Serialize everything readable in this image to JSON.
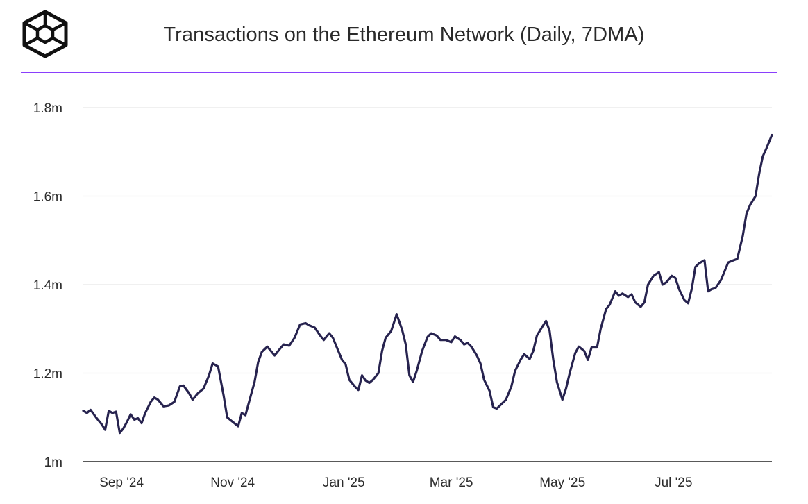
{
  "header": {
    "title": "Transactions on the Ethereum Network (Daily, 7DMA)",
    "logo_icon": "cube-logo-icon"
  },
  "colors": {
    "line": "#27234f",
    "accent_rule": "#8a3ffc",
    "grid": "#e6e6e6",
    "axis": "#222222"
  },
  "chart_data": {
    "type": "line",
    "title": "Transactions on the Ethereum Network (Daily, 7DMA)",
    "xlabel": "",
    "ylabel": "",
    "ylim": [
      1000000,
      1800000
    ],
    "y_ticks": [
      1000000,
      1200000,
      1400000,
      1600000,
      1800000
    ],
    "y_tick_labels": [
      "1m",
      "1.2m",
      "1.4m",
      "1.6m",
      "1.8m"
    ],
    "x_ticks": [
      "2024-09-01",
      "2024-11-01",
      "2025-01-01",
      "2025-03-01",
      "2025-05-01",
      "2025-07-01"
    ],
    "x_tick_labels": [
      "Sep '24",
      "Nov '24",
      "Jan '25",
      "Mar '25",
      "May '25",
      "Jul '25"
    ],
    "grid": true,
    "series": [
      {
        "points": [
          [
            "2024-08-11",
            1115000
          ],
          [
            "2024-08-13",
            1110000
          ],
          [
            "2024-08-15",
            1117000
          ],
          [
            "2024-08-18",
            1100000
          ],
          [
            "2024-08-21",
            1085000
          ],
          [
            "2024-08-23",
            1072000
          ],
          [
            "2024-08-25",
            1115000
          ],
          [
            "2024-08-27",
            1110000
          ],
          [
            "2024-08-29",
            1113000
          ],
          [
            "2024-08-31",
            1065000
          ],
          [
            "2024-09-02",
            1075000
          ],
          [
            "2024-09-04",
            1090000
          ],
          [
            "2024-09-06",
            1107000
          ],
          [
            "2024-09-08",
            1095000
          ],
          [
            "2024-09-10",
            1098000
          ],
          [
            "2024-09-12",
            1087000
          ],
          [
            "2024-09-14",
            1110000
          ],
          [
            "2024-09-17",
            1135000
          ],
          [
            "2024-09-19",
            1145000
          ],
          [
            "2024-09-21",
            1140000
          ],
          [
            "2024-09-24",
            1125000
          ],
          [
            "2024-09-27",
            1127000
          ],
          [
            "2024-09-30",
            1135000
          ],
          [
            "2024-10-03",
            1170000
          ],
          [
            "2024-10-05",
            1172000
          ],
          [
            "2024-10-08",
            1155000
          ],
          [
            "2024-10-10",
            1140000
          ],
          [
            "2024-10-13",
            1155000
          ],
          [
            "2024-10-16",
            1165000
          ],
          [
            "2024-10-19",
            1195000
          ],
          [
            "2024-10-21",
            1222000
          ],
          [
            "2024-10-24",
            1215000
          ],
          [
            "2024-10-27",
            1150000
          ],
          [
            "2024-10-29",
            1100000
          ],
          [
            "2024-11-01",
            1090000
          ],
          [
            "2024-11-04",
            1080000
          ],
          [
            "2024-11-06",
            1110000
          ],
          [
            "2024-11-08",
            1105000
          ],
          [
            "2024-11-11",
            1150000
          ],
          [
            "2024-11-13",
            1180000
          ],
          [
            "2024-11-15",
            1225000
          ],
          [
            "2024-11-17",
            1248000
          ],
          [
            "2024-11-20",
            1260000
          ],
          [
            "2024-11-22",
            1250000
          ],
          [
            "2024-11-24",
            1240000
          ],
          [
            "2024-11-27",
            1255000
          ],
          [
            "2024-11-29",
            1265000
          ],
          [
            "2024-12-02",
            1262000
          ],
          [
            "2024-12-05",
            1280000
          ],
          [
            "2024-12-08",
            1310000
          ],
          [
            "2024-12-11",
            1313000
          ],
          [
            "2024-12-13",
            1308000
          ],
          [
            "2024-12-16",
            1303000
          ],
          [
            "2024-12-19",
            1285000
          ],
          [
            "2024-12-21",
            1275000
          ],
          [
            "2024-12-24",
            1290000
          ],
          [
            "2024-12-26",
            1280000
          ],
          [
            "2024-12-29",
            1250000
          ],
          [
            "2024-12-31",
            1230000
          ],
          [
            "2025-01-02",
            1220000
          ],
          [
            "2025-01-04",
            1185000
          ],
          [
            "2025-01-07",
            1170000
          ],
          [
            "2025-01-09",
            1162000
          ],
          [
            "2025-01-11",
            1195000
          ],
          [
            "2025-01-13",
            1183000
          ],
          [
            "2025-01-15",
            1178000
          ],
          [
            "2025-01-17",
            1185000
          ],
          [
            "2025-01-20",
            1200000
          ],
          [
            "2025-01-22",
            1250000
          ],
          [
            "2025-01-24",
            1280000
          ],
          [
            "2025-01-27",
            1295000
          ],
          [
            "2025-01-30",
            1333000
          ],
          [
            "2025-02-02",
            1298000
          ],
          [
            "2025-02-04",
            1265000
          ],
          [
            "2025-02-06",
            1195000
          ],
          [
            "2025-02-08",
            1180000
          ],
          [
            "2025-02-10",
            1205000
          ],
          [
            "2025-02-13",
            1250000
          ],
          [
            "2025-02-16",
            1282000
          ],
          [
            "2025-02-18",
            1290000
          ],
          [
            "2025-02-21",
            1285000
          ],
          [
            "2025-02-23",
            1275000
          ],
          [
            "2025-02-26",
            1275000
          ],
          [
            "2025-03-01",
            1270000
          ],
          [
            "2025-03-03",
            1283000
          ],
          [
            "2025-03-06",
            1275000
          ],
          [
            "2025-03-08",
            1265000
          ],
          [
            "2025-03-10",
            1268000
          ],
          [
            "2025-03-12",
            1260000
          ],
          [
            "2025-03-15",
            1240000
          ],
          [
            "2025-03-17",
            1222000
          ],
          [
            "2025-03-19",
            1185000
          ],
          [
            "2025-03-22",
            1160000
          ],
          [
            "2025-03-24",
            1123000
          ],
          [
            "2025-03-26",
            1120000
          ],
          [
            "2025-03-28",
            1128000
          ],
          [
            "2025-03-31",
            1140000
          ],
          [
            "2025-04-03",
            1170000
          ],
          [
            "2025-04-05",
            1205000
          ],
          [
            "2025-04-08",
            1230000
          ],
          [
            "2025-04-10",
            1243000
          ],
          [
            "2025-04-13",
            1232000
          ],
          [
            "2025-04-15",
            1250000
          ],
          [
            "2025-04-17",
            1285000
          ],
          [
            "2025-04-20",
            1305000
          ],
          [
            "2025-04-22",
            1318000
          ],
          [
            "2025-04-24",
            1295000
          ],
          [
            "2025-04-26",
            1230000
          ],
          [
            "2025-04-28",
            1180000
          ],
          [
            "2025-05-01",
            1140000
          ],
          [
            "2025-05-03",
            1165000
          ],
          [
            "2025-05-05",
            1200000
          ],
          [
            "2025-05-08",
            1245000
          ],
          [
            "2025-05-10",
            1260000
          ],
          [
            "2025-05-13",
            1250000
          ],
          [
            "2025-05-15",
            1230000
          ],
          [
            "2025-05-17",
            1258000
          ],
          [
            "2025-05-20",
            1258000
          ],
          [
            "2025-05-22",
            1300000
          ],
          [
            "2025-05-25",
            1345000
          ],
          [
            "2025-05-27",
            1355000
          ],
          [
            "2025-05-30",
            1385000
          ],
          [
            "2025-06-01",
            1375000
          ],
          [
            "2025-06-03",
            1380000
          ],
          [
            "2025-06-06",
            1372000
          ],
          [
            "2025-06-08",
            1378000
          ],
          [
            "2025-06-10",
            1360000
          ],
          [
            "2025-06-13",
            1350000
          ],
          [
            "2025-06-15",
            1360000
          ],
          [
            "2025-06-17",
            1400000
          ],
          [
            "2025-06-20",
            1420000
          ],
          [
            "2025-06-23",
            1428000
          ],
          [
            "2025-06-25",
            1400000
          ],
          [
            "2025-06-27",
            1405000
          ],
          [
            "2025-06-30",
            1420000
          ],
          [
            "2025-07-02",
            1415000
          ],
          [
            "2025-07-04",
            1390000
          ],
          [
            "2025-07-07",
            1365000
          ],
          [
            "2025-07-09",
            1358000
          ],
          [
            "2025-07-11",
            1390000
          ],
          [
            "2025-07-13",
            1440000
          ],
          [
            "2025-07-15",
            1448000
          ],
          [
            "2025-07-18",
            1455000
          ],
          [
            "2025-07-20",
            1385000
          ],
          [
            "2025-07-22",
            1390000
          ],
          [
            "2025-07-24",
            1392000
          ],
          [
            "2025-07-27",
            1410000
          ],
          [
            "2025-07-29",
            1430000
          ],
          [
            "2025-07-31",
            1450000
          ],
          [
            "2025-08-03",
            1455000
          ],
          [
            "2025-08-05",
            1458000
          ],
          [
            "2025-08-08",
            1510000
          ],
          [
            "2025-08-10",
            1560000
          ],
          [
            "2025-08-12",
            1580000
          ],
          [
            "2025-08-15",
            1600000
          ],
          [
            "2025-08-17",
            1650000
          ],
          [
            "2025-08-19",
            1690000
          ],
          [
            "2025-08-21",
            1708000
          ],
          [
            "2025-08-24",
            1738000
          ]
        ]
      }
    ]
  }
}
